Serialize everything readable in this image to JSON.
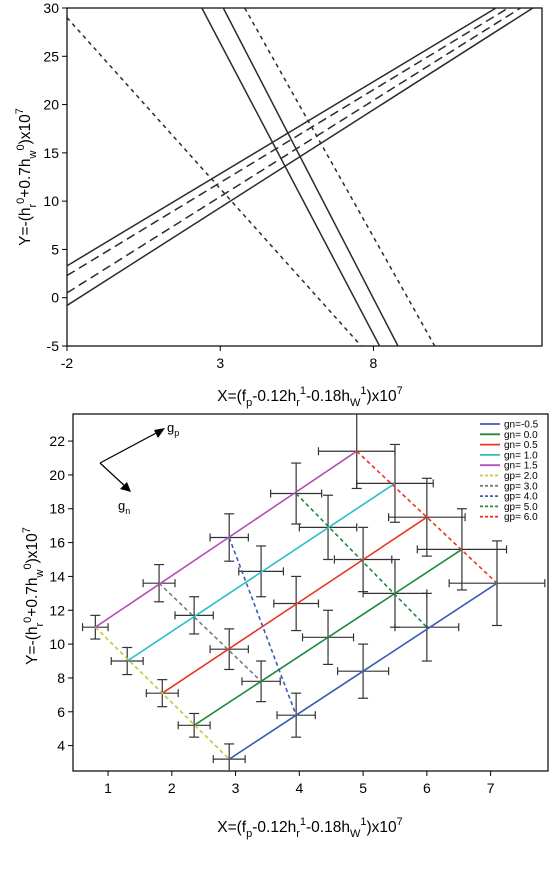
{
  "chart_data": [
    {
      "type": "line",
      "title": "",
      "xlabel": "X=(f_p-0.12h_r^1-0.18h_W^1)x10^7",
      "ylabel": "Y=-(h_r^0+0.7h_w^0)x10^7",
      "xlim": [
        -2,
        13.5
      ],
      "ylim": [
        -5,
        30
      ],
      "x_ticks": [
        -2,
        3,
        8
      ],
      "y_ticks": [
        -5,
        0,
        5,
        10,
        15,
        20,
        25,
        30
      ],
      "grid": false,
      "series": [
        {
          "style": "solid",
          "points": [
            [
              -2,
              3.3
            ],
            [
              12.0,
              30
            ]
          ]
        },
        {
          "style": "solid",
          "points": [
            [
              -2,
              -0.8
            ],
            [
              13.2,
              30
            ]
          ]
        },
        {
          "style": "dashed",
          "points": [
            [
              -2,
              2.3
            ],
            [
              12.4,
              30
            ]
          ]
        },
        {
          "style": "dashed",
          "points": [
            [
              -2,
              0.5
            ],
            [
              12.8,
              30
            ]
          ]
        },
        {
          "style": "solid",
          "points": [
            [
              2.4,
              30
            ],
            [
              8.2,
              -5
            ]
          ]
        },
        {
          "style": "solid",
          "points": [
            [
              3.1,
              30
            ],
            [
              8.8,
              -5
            ]
          ]
        },
        {
          "style": "dotted",
          "points": [
            [
              -2,
              29.0
            ],
            [
              7.6,
              -5
            ]
          ]
        },
        {
          "style": "dotted",
          "points": [
            [
              3.8,
              30
            ],
            [
              10.0,
              -5
            ]
          ]
        }
      ]
    },
    {
      "type": "line",
      "title": "",
      "xlabel": "X=(f_p-0.12h_r^1-0.18h_W^1)x10^7",
      "ylabel": "Y=-(h_r^0+0.7h_w^0)x10^7",
      "xlim": [
        0.45,
        7.9
      ],
      "ylim": [
        2.5,
        23.6
      ],
      "x_ticks": [
        1,
        2,
        3,
        4,
        5,
        6,
        7
      ],
      "y_ticks": [
        4,
        6,
        8,
        10,
        12,
        14,
        16,
        18,
        20,
        22
      ],
      "grid": false,
      "legend_position": "top-right",
      "arrow_labels": [
        "g_p",
        "g_n"
      ],
      "series": [
        {
          "name": "g_n=-0.5",
          "color": "#3b5bb5",
          "style": "solid",
          "x": [
            2.9,
            7.1
          ],
          "y": [
            3.2,
            13.6
          ]
        },
        {
          "name": "g_n= 0.0",
          "color": "#1f8a3a",
          "style": "solid",
          "x": [
            2.35,
            6.55
          ],
          "y": [
            5.2,
            15.6
          ]
        },
        {
          "name": "g_n= 0.5",
          "color": "#ee3322",
          "style": "solid",
          "x": [
            1.85,
            6.0
          ],
          "y": [
            7.1,
            17.5
          ]
        },
        {
          "name": "g_n= 1.0",
          "color": "#2bbfc4",
          "style": "solid",
          "x": [
            1.3,
            5.5
          ],
          "y": [
            9.0,
            19.5
          ]
        },
        {
          "name": "g_n= 1.5",
          "color": "#b050b8",
          "style": "solid",
          "x": [
            0.8,
            4.9
          ],
          "y": [
            11.0,
            21.4
          ]
        },
        {
          "name": "g_p= 2.0",
          "color": "#c6c63a",
          "style": "dashed",
          "x": [
            0.8,
            2.9
          ],
          "y": [
            11.0,
            3.2
          ]
        },
        {
          "name": "g_p= 3.0",
          "color": "#7a7a7a",
          "style": "dashed",
          "x": [
            1.8,
            3.4
          ],
          "y": [
            13.6,
            7.8
          ]
        },
        {
          "name": "g_p= 4.0",
          "color": "#3b5bb5",
          "style": "dashed",
          "x": [
            2.9,
            3.95
          ],
          "y": [
            16.3,
            5.8
          ]
        },
        {
          "name": "g_p= 5.0",
          "color": "#1f8a3a",
          "style": "dashed",
          "x": [
            3.95,
            6.0
          ],
          "y": [
            18.9,
            11.0
          ]
        },
        {
          "name": "g_p= 6.0",
          "color": "#ee3322",
          "style": "dashed",
          "x": [
            4.9,
            7.1
          ],
          "y": [
            21.4,
            13.6
          ]
        }
      ],
      "error_points": [
        {
          "x": 0.8,
          "y": 11.0,
          "xerr": 0.2,
          "yerr": 0.7
        },
        {
          "x": 1.3,
          "y": 9.0,
          "xerr": 0.25,
          "yerr": 0.8
        },
        {
          "x": 1.85,
          "y": 7.1,
          "xerr": 0.25,
          "yerr": 0.8
        },
        {
          "x": 2.35,
          "y": 5.2,
          "xerr": 0.25,
          "yerr": 0.7
        },
        {
          "x": 2.9,
          "y": 3.2,
          "xerr": 0.25,
          "yerr": 0.9
        },
        {
          "x": 1.8,
          "y": 13.6,
          "xerr": 0.25,
          "yerr": 1.1
        },
        {
          "x": 2.35,
          "y": 11.7,
          "xerr": 0.3,
          "yerr": 1.1
        },
        {
          "x": 2.9,
          "y": 9.7,
          "xerr": 0.3,
          "yerr": 1.2
        },
        {
          "x": 3.4,
          "y": 7.8,
          "xerr": 0.3,
          "yerr": 1.2
        },
        {
          "x": 3.95,
          "y": 5.8,
          "xerr": 0.3,
          "yerr": 1.3
        },
        {
          "x": 2.9,
          "y": 16.3,
          "xerr": 0.3,
          "yerr": 1.4
        },
        {
          "x": 3.4,
          "y": 14.3,
          "xerr": 0.35,
          "yerr": 1.5
        },
        {
          "x": 3.95,
          "y": 12.4,
          "xerr": 0.35,
          "yerr": 1.6
        },
        {
          "x": 4.45,
          "y": 10.4,
          "xerr": 0.4,
          "yerr": 1.6
        },
        {
          "x": 5.0,
          "y": 8.4,
          "xerr": 0.4,
          "yerr": 1.6
        },
        {
          "x": 3.95,
          "y": 18.9,
          "xerr": 0.4,
          "yerr": 1.8
        },
        {
          "x": 4.45,
          "y": 16.9,
          "xerr": 0.45,
          "yerr": 1.9
        },
        {
          "x": 5.0,
          "y": 15.0,
          "xerr": 0.45,
          "yerr": 1.9
        },
        {
          "x": 5.5,
          "y": 13.0,
          "xerr": 0.5,
          "yerr": 2.0
        },
        {
          "x": 6.0,
          "y": 11.0,
          "xerr": 0.5,
          "yerr": 2.0
        },
        {
          "x": 4.9,
          "y": 21.4,
          "xerr": 0.6,
          "yerr": 2.2
        },
        {
          "x": 5.5,
          "y": 19.5,
          "xerr": 0.6,
          "yerr": 2.3
        },
        {
          "x": 6.0,
          "y": 17.5,
          "xerr": 0.6,
          "yerr": 2.3
        },
        {
          "x": 6.55,
          "y": 15.6,
          "xerr": 0.7,
          "yerr": 2.4
        },
        {
          "x": 7.1,
          "y": 13.6,
          "xerr": 0.75,
          "yerr": 2.5
        }
      ]
    }
  ]
}
